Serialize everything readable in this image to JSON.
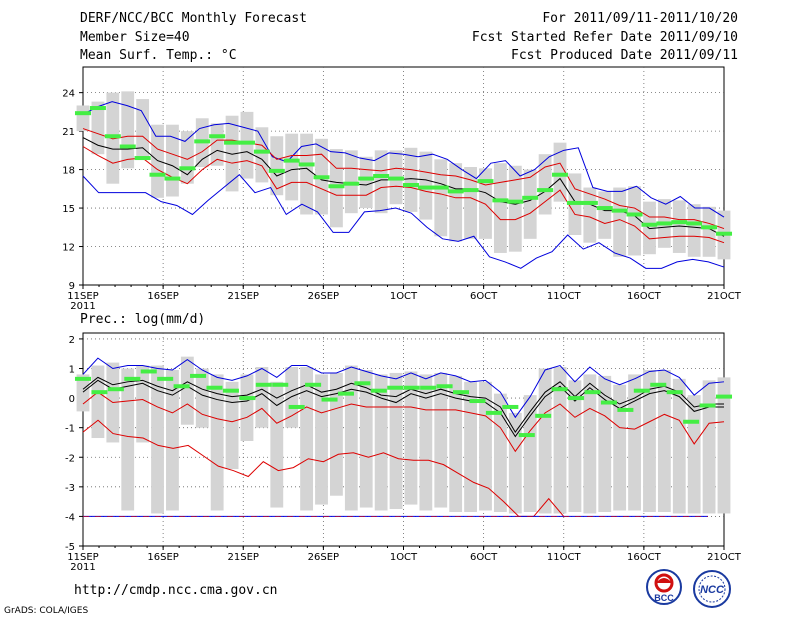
{
  "header": {
    "title": "DERF/NCC/BCC Monthly Forecast",
    "member_size": "Member Size=40",
    "variable": "Mean Surf. Temp.: °C",
    "forecast_period": "For 2011/09/11-2011/10/20",
    "started_refer_date": "Fcst Started Refer Date 2011/09/10",
    "produced_date": "Fcst Produced Date 2011/09/11"
  },
  "footer": {
    "url": "http://cmdp.ncc.cma.gov.cn",
    "credit": "GrADS: COLA/IGES",
    "logo1_text": "BCC",
    "logo2_text": "NCC"
  },
  "colors": {
    "blue": "#0000dd",
    "red": "#dd0000",
    "green": "#44ee44",
    "box": "#d4d4d4",
    "black": "#000000"
  },
  "chart_data": [
    {
      "type": "line",
      "title": "Mean Surf. Temp.: °C",
      "x_tick_labels": [
        "11SEP",
        "16SEP",
        "21SEP",
        "26SEP",
        "1OCT",
        "6OCT",
        "11OCT",
        "16OCT",
        "21OCT"
      ],
      "x_year_label": "2011",
      "x_range": [
        1,
        41
      ],
      "y_ticks": [
        "9",
        "12",
        "15",
        "18",
        "21",
        "24"
      ],
      "ylim": [
        9,
        26
      ],
      "days": 40,
      "series": [
        {
          "name": "max",
          "color": "blue",
          "values": [
            22.3,
            22.9,
            23.3,
            23,
            22.6,
            20.6,
            20.6,
            20.2,
            21.2,
            21.5,
            21.6,
            21.3,
            21,
            19,
            18.6,
            19.8,
            20,
            19.4,
            19.3,
            18.9,
            18.7,
            19.3,
            19.2,
            19,
            19.2,
            18.8,
            18,
            17.3,
            18.5,
            18.7,
            17.5,
            18,
            19,
            19.5,
            19.7,
            16.6,
            16.3,
            16.3,
            16.7,
            15.8,
            15.3,
            15.9,
            15,
            15,
            14.3
          ]
        },
        {
          "name": "upper",
          "color": "red",
          "values": [
            21.2,
            20.8,
            20.4,
            20.6,
            20.6,
            19.6,
            19.2,
            18.8,
            19.4,
            20.3,
            20.3,
            20.1,
            19.9,
            18.8,
            19.1,
            19.1,
            19.2,
            18.1,
            18.1,
            18,
            17.9,
            18.1,
            18,
            17.8,
            17.6,
            17.5,
            17.2,
            16.8,
            17,
            17.2,
            17.4,
            18.2,
            18.5,
            16.5,
            16.1,
            15.7,
            15.2,
            15,
            14.3,
            14.3,
            14.1,
            14.1,
            13.8,
            13.4
          ]
        },
        {
          "name": "mean",
          "color": "black",
          "values": [
            20.5,
            19.9,
            19.6,
            19.6,
            19.7,
            18.7,
            18.3,
            17.6,
            18.8,
            19.5,
            19.2,
            19.4,
            18.8,
            17.5,
            18,
            18.1,
            17.2,
            17,
            16.9,
            16.8,
            17.2,
            17.2,
            17.3,
            17.2,
            16.9,
            16.5,
            16.5,
            16.2,
            15.5,
            15.3,
            15.6,
            16.3,
            17.3,
            15.5,
            15.3,
            14.8,
            14.8,
            14.4,
            13.4,
            13.5,
            13.6,
            13.5,
            13.4,
            12.8
          ]
        },
        {
          "name": "lower",
          "color": "red",
          "values": [
            19.8,
            19.1,
            18.5,
            18.8,
            18.9,
            18,
            17.4,
            16.9,
            18,
            18.8,
            18.5,
            18.7,
            18.3,
            16.5,
            17,
            17,
            16.5,
            16,
            16,
            16,
            16.6,
            16.7,
            16.6,
            16.3,
            16.1,
            15.8,
            15.8,
            15.3,
            14.1,
            14.1,
            14.6,
            15.5,
            16.4,
            14.5,
            14.3,
            13.8,
            14.1,
            13.6,
            12.6,
            12.7,
            12.8,
            12.8,
            12.7,
            12.3
          ]
        },
        {
          "name": "min",
          "color": "blue",
          "values": [
            17.5,
            16.2,
            16.2,
            16.2,
            16.2,
            15.5,
            15.2,
            14.5,
            15.6,
            16.6,
            17.6,
            16.2,
            16.6,
            14.5,
            15.3,
            14.7,
            13.1,
            13.1,
            14.7,
            14.8,
            15,
            14.6,
            13.5,
            12.6,
            12.4,
            12.8,
            11.2,
            10.8,
            10.3,
            11.1,
            11.6,
            12.9,
            11.8,
            12.3,
            11.5,
            11.1,
            10.3,
            10.3,
            10.8,
            11,
            10.8,
            10.4
          ]
        },
        {
          "name": "ensemble_box_high",
          "color": "box",
          "values": [
            23,
            23.3,
            24,
            24.1,
            23.5,
            21.5,
            21.5,
            21,
            22,
            21.6,
            22.2,
            22.5,
            21.3,
            20.6,
            20.8,
            20.8,
            20.4,
            19.6,
            19.5,
            19,
            19.5,
            19.5,
            19.7,
            19.4,
            18.8,
            18.5,
            18.2,
            18.1,
            18.5,
            18.3,
            18,
            19.2,
            20.1,
            17.7,
            16.6,
            16.3,
            16.6,
            16.7,
            15.5,
            15.7,
            15.6,
            15.3,
            15.1,
            14.8
          ]
        },
        {
          "name": "ensemble_box_low",
          "color": "box",
          "values": [
            21,
            19.2,
            16.9,
            18.1,
            19,
            15.8,
            15.9,
            16.9,
            18.2,
            18.3,
            16.3,
            17.3,
            17,
            16,
            15.6,
            14.5,
            14.5,
            13.5,
            14.6,
            15,
            14.6,
            15.3,
            14.7,
            14.1,
            12.8,
            12.4,
            12.6,
            12.6,
            11.5,
            11.6,
            12.6,
            14.5,
            15.5,
            12.9,
            12.3,
            12.6,
            11.2,
            11.3,
            11.4,
            11.9,
            11.5,
            11.2,
            11.2,
            11
          ]
        },
        {
          "name": "control",
          "color": "green",
          "values": [
            22.4,
            22.8,
            20.6,
            19.8,
            18.9,
            17.6,
            17.3,
            18.1,
            20.2,
            20.6,
            20.1,
            20.1,
            19.4,
            17.9,
            18.7,
            18.4,
            17.4,
            16.7,
            16.9,
            17.3,
            17.5,
            17.3,
            16.8,
            16.6,
            16.6,
            16.3,
            16.4,
            17.1,
            15.6,
            15.5,
            15.8,
            16.4,
            17.6,
            15.4,
            15.4,
            15,
            14.8,
            14.5,
            13.7,
            13.8,
            13.9,
            13.8,
            13.5,
            13
          ]
        }
      ]
    },
    {
      "type": "line",
      "title": "Prec.: log(mm/d)",
      "x_tick_labels": [
        "11SEP",
        "16SEP",
        "21SEP",
        "26SEP",
        "1OCT",
        "6OCT",
        "11OCT",
        "16OCT",
        "21OCT"
      ],
      "x_year_label": "2011",
      "x_range": [
        1,
        41
      ],
      "y_ticks": [
        "-5",
        "-4",
        "-3",
        "-2",
        "-1",
        "0",
        "1",
        "2"
      ],
      "ylim": [
        -5,
        2.2
      ],
      "days": 40,
      "series": [
        {
          "name": "max",
          "color": "blue",
          "values": [
            0.8,
            1.35,
            1,
            1.1,
            1.1,
            1,
            0.95,
            1.3,
            0.95,
            0.7,
            0.6,
            0.75,
            1,
            0.7,
            1.1,
            1.1,
            0.85,
            0.85,
            1.05,
            0.9,
            0.75,
            0.65,
            0.85,
            0.65,
            0.85,
            0.75,
            0.55,
            0.6,
            0.2,
            -0.65,
            0.05,
            0.95,
            1.1,
            0.55,
            1.05,
            0.65,
            0.45,
            0.65,
            0.9,
            0.95,
            0.7,
            0.1,
            0.5,
            0.55
          ]
        },
        {
          "name": "upper",
          "color": "black",
          "values": [
            0.3,
            0.7,
            0.45,
            0.55,
            0.6,
            0.4,
            0.25,
            0.55,
            0.3,
            0.15,
            0.05,
            0.1,
            0.3,
            0,
            0.25,
            0.45,
            0.2,
            0.3,
            0.5,
            0.35,
            0.1,
            0.05,
            0.3,
            0.15,
            0.3,
            0.15,
            0.05,
            0,
            -0.3,
            -1.15,
            -0.45,
            0.2,
            0.55,
            0.05,
            0.5,
            0.1,
            -0.2,
            0,
            0.3,
            0.4,
            0.2,
            -0.3,
            -0.2,
            -0.2
          ]
        },
        {
          "name": "lower_black",
          "color": "black",
          "values": [
            0.2,
            0.6,
            0.3,
            0.4,
            0.5,
            0.25,
            0.1,
            0.4,
            0.1,
            -0.05,
            -0.15,
            -0.1,
            0.15,
            -0.25,
            0.05,
            0.25,
            0.05,
            0.15,
            0.3,
            0.2,
            0,
            -0.15,
            0.15,
            0,
            0.15,
            0,
            -0.1,
            -0.15,
            -0.5,
            -1.3,
            -0.6,
            0.05,
            0.4,
            -0.1,
            0.35,
            -0.05,
            -0.35,
            -0.1,
            0.15,
            0.25,
            0.05,
            -0.45,
            -0.3,
            -0.3
          ]
        },
        {
          "name": "mid_red",
          "color": "red",
          "values": [
            -0.2,
            0.2,
            -0.15,
            -0.1,
            -0.05,
            -0.3,
            -0.5,
            -0.2,
            -0.55,
            -0.7,
            -0.8,
            -0.65,
            -0.35,
            -0.85,
            -0.6,
            -0.3,
            -0.5,
            -0.35,
            -0.2,
            -0.3,
            -0.3,
            -0.3,
            -0.3,
            -0.4,
            -0.4,
            -0.4,
            -0.5,
            -0.6,
            -1,
            -1.8,
            -1.1,
            -0.5,
            -0.2,
            -0.65,
            -0.35,
            -0.6,
            -1,
            -1.05,
            -0.8,
            -0.55,
            -0.75,
            -1.55,
            -0.85,
            -0.8
          ]
        },
        {
          "name": "low_red",
          "color": "red",
          "values": [
            -1.15,
            -0.75,
            -1.2,
            -1.3,
            -1.35,
            -1.6,
            -1.7,
            -1.6,
            -1.95,
            -2.3,
            -2.45,
            -2.65,
            -2.15,
            -2.45,
            -2.35,
            -2.05,
            -2.15,
            -1.9,
            -1.85,
            -2,
            -1.85,
            -2.05,
            -2.1,
            -2.1,
            -2.25,
            -2.55,
            -2.85,
            -3.05,
            -3.5,
            -4,
            -4,
            -3.4,
            -4
          ]
        },
        {
          "name": "floor",
          "color": "blue",
          "values": [
            -4,
            -4
          ]
        },
        {
          "name": "ensemble_box_high",
          "color": "box",
          "values": [
            0.8,
            1.1,
            1.2,
            1,
            1.1,
            1.1,
            0.95,
            1.4,
            1,
            0.8,
            0.55,
            0.8,
            1.05,
            0.55,
            1.05,
            1.05,
            0.8,
            0.85,
            1.1,
            0.95,
            0.8,
            0.85,
            0.9,
            0.8,
            0.85,
            0.75,
            0.55,
            0.55,
            0.15,
            -0.5,
            0.1,
            1,
            1.05,
            0.6,
            0.8,
            0.75,
            0.45,
            0.8,
            0.95,
            0.95,
            0.65,
            0.1,
            0.6,
            0.7
          ]
        },
        {
          "name": "ensemble_box_low",
          "color": "box",
          "values": [
            -0.45,
            -1.35,
            -1.5,
            -3.8,
            -1.5,
            -3.9,
            -3.8,
            -0.9,
            -1,
            -3.8,
            -2.4,
            -1.45,
            -1,
            -3.7,
            -1,
            -3.8,
            -3.6,
            -3.3,
            -3.8,
            -3.7,
            -3.8,
            -3.75,
            -3.6,
            -3.8,
            -3.7,
            -3.85,
            -3.85,
            -3.8,
            -3.85,
            -3.9,
            -3.85,
            -3.9,
            -3.9,
            -3.85,
            -3.9,
            -3.85,
            -3.8,
            -3.8,
            -3.85,
            -3.85,
            -3.9,
            -3.9,
            -3.9,
            -3.9
          ]
        },
        {
          "name": "control",
          "color": "green",
          "values": [
            0.65,
            0.2,
            0.3,
            0.65,
            0.9,
            0.65,
            0.4,
            0.75,
            0.35,
            0.25,
            0,
            0.45,
            0.45,
            -0.3,
            0.45,
            -0.05,
            0.15,
            0.5,
            0.25,
            0.35,
            0.35,
            0.35,
            0.4,
            0.2,
            -0.1,
            -0.5,
            -0.3,
            -1.25,
            -0.6,
            0.3,
            0,
            0.2,
            -0.15,
            -0.4,
            0.25,
            0.45,
            0.2,
            -0.8,
            -0.25,
            0.05
          ]
        }
      ]
    }
  ]
}
